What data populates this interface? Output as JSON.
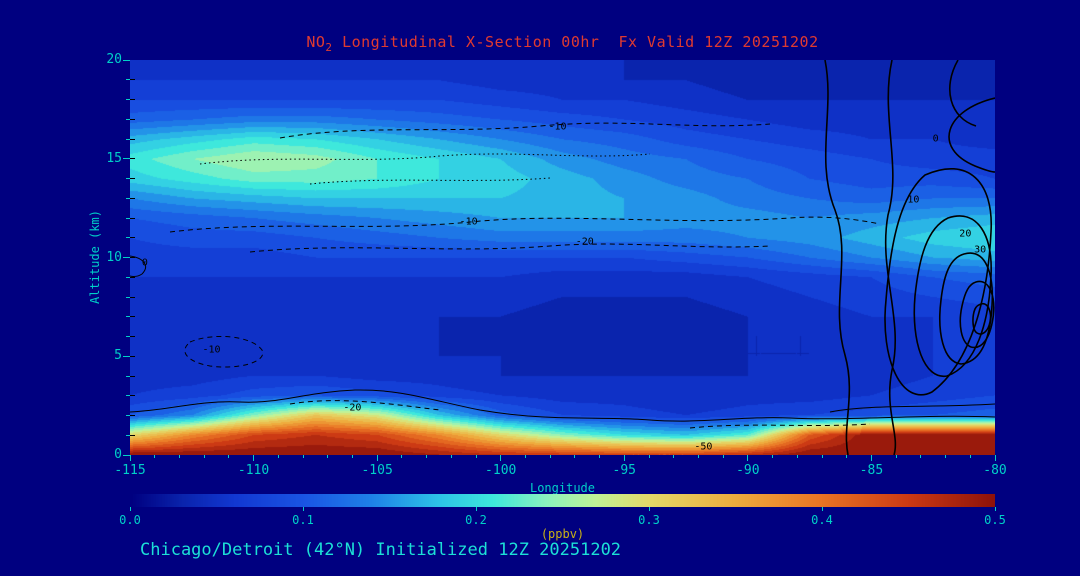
{
  "page": {
    "title": {
      "prefix": "NO",
      "sub": "2",
      "rest": " Longitudinal X-Section 00hr  Fx Valid 12Z 20251202"
    },
    "caption": "Chicago/Detroit (42°N) Initialized 12Z 20251202",
    "colors": {
      "background": "#000080",
      "title_text": "#e03a30",
      "axis_text": "#00d0c8",
      "caption_text": "#1ce0d6",
      "units_text": "#c9b115",
      "contour_lines": "#000000"
    }
  },
  "chart_data": {
    "type": "heatmap",
    "title": "NO2 Longitudinal X-Section 00hr  Fx Valid 12Z 20251202",
    "xlabel": "Longitude",
    "ylabel": "Altitude (km)",
    "x_range": [
      -115,
      -80
    ],
    "y_range": [
      0,
      20
    ],
    "x_ticks": [
      -115,
      -110,
      -105,
      -100,
      -95,
      -90,
      -85,
      -80
    ],
    "y_ticks": [
      0,
      5,
      10,
      15,
      20
    ],
    "x": [
      -115,
      -112.5,
      -110,
      -107.5,
      -105,
      -102.5,
      -100,
      -97.5,
      -95,
      -92.5,
      -90,
      -87.5,
      -85,
      -82.5,
      -80
    ],
    "y": [
      0,
      1,
      2,
      3,
      4,
      5,
      6,
      7,
      8,
      9,
      10,
      11,
      12,
      13,
      14,
      15,
      16,
      17,
      18,
      19,
      20
    ],
    "values_ppbv": [
      [
        0.5,
        0.5,
        0.5,
        0.5,
        0.5,
        0.48,
        0.46,
        0.45,
        0.44,
        0.44,
        0.46,
        0.5,
        0.5,
        0.5,
        0.5
      ],
      [
        0.3,
        0.38,
        0.44,
        0.46,
        0.44,
        0.38,
        0.3,
        0.24,
        0.2,
        0.18,
        0.22,
        0.42,
        0.5,
        0.5,
        0.5
      ],
      [
        0.1,
        0.14,
        0.24,
        0.32,
        0.28,
        0.18,
        0.11,
        0.08,
        0.07,
        0.06,
        0.07,
        0.08,
        0.09,
        0.1,
        0.11
      ],
      [
        0.06,
        0.07,
        0.09,
        0.1,
        0.09,
        0.07,
        0.06,
        0.05,
        0.05,
        0.04,
        0.05,
        0.05,
        0.06,
        0.07,
        0.08
      ],
      [
        0.05,
        0.05,
        0.06,
        0.06,
        0.05,
        0.05,
        0.04,
        0.04,
        0.04,
        0.04,
        0.04,
        0.05,
        0.05,
        0.06,
        0.07
      ],
      [
        0.05,
        0.05,
        0.05,
        0.05,
        0.05,
        0.04,
        0.04,
        0.03,
        0.03,
        0.03,
        0.04,
        0.04,
        0.05,
        0.06,
        0.06
      ],
      [
        0.05,
        0.05,
        0.05,
        0.05,
        0.04,
        0.04,
        0.03,
        0.03,
        0.03,
        0.03,
        0.04,
        0.04,
        0.05,
        0.06,
        0.06
      ],
      [
        0.05,
        0.05,
        0.05,
        0.05,
        0.04,
        0.04,
        0.04,
        0.03,
        0.03,
        0.03,
        0.04,
        0.05,
        0.06,
        0.06,
        0.07
      ],
      [
        0.05,
        0.05,
        0.05,
        0.05,
        0.05,
        0.05,
        0.05,
        0.04,
        0.04,
        0.04,
        0.05,
        0.06,
        0.07,
        0.08,
        0.09
      ],
      [
        0.06,
        0.06,
        0.06,
        0.06,
        0.06,
        0.06,
        0.06,
        0.05,
        0.05,
        0.05,
        0.06,
        0.07,
        0.08,
        0.1,
        0.11
      ],
      [
        0.07,
        0.07,
        0.07,
        0.08,
        0.08,
        0.08,
        0.08,
        0.08,
        0.08,
        0.09,
        0.1,
        0.12,
        0.14,
        0.16,
        0.17
      ],
      [
        0.08,
        0.09,
        0.09,
        0.1,
        0.11,
        0.12,
        0.13,
        0.13,
        0.13,
        0.13,
        0.14,
        0.15,
        0.17,
        0.19,
        0.2
      ],
      [
        0.1,
        0.11,
        0.12,
        0.13,
        0.14,
        0.15,
        0.16,
        0.16,
        0.16,
        0.15,
        0.15,
        0.14,
        0.15,
        0.16,
        0.17
      ],
      [
        0.14,
        0.16,
        0.17,
        0.18,
        0.18,
        0.18,
        0.18,
        0.17,
        0.16,
        0.15,
        0.13,
        0.12,
        0.11,
        0.12,
        0.12
      ],
      [
        0.19,
        0.21,
        0.23,
        0.23,
        0.22,
        0.2,
        0.19,
        0.17,
        0.15,
        0.13,
        0.12,
        0.1,
        0.09,
        0.09,
        0.08
      ],
      [
        0.21,
        0.24,
        0.26,
        0.25,
        0.22,
        0.2,
        0.18,
        0.15,
        0.13,
        0.12,
        0.1,
        0.09,
        0.08,
        0.07,
        0.07
      ],
      [
        0.17,
        0.19,
        0.21,
        0.2,
        0.18,
        0.16,
        0.14,
        0.12,
        0.11,
        0.09,
        0.08,
        0.07,
        0.06,
        0.06,
        0.05
      ],
      [
        0.11,
        0.12,
        0.13,
        0.13,
        0.12,
        0.11,
        0.1,
        0.09,
        0.08,
        0.07,
        0.06,
        0.05,
        0.05,
        0.04,
        0.04
      ],
      [
        0.08,
        0.08,
        0.08,
        0.08,
        0.08,
        0.08,
        0.07,
        0.06,
        0.06,
        0.05,
        0.04,
        0.04,
        0.04,
        0.04,
        0.04
      ],
      [
        0.06,
        0.06,
        0.06,
        0.06,
        0.06,
        0.06,
        0.05,
        0.05,
        0.04,
        0.04,
        0.03,
        0.03,
        0.03,
        0.03,
        0.03
      ],
      [
        0.05,
        0.05,
        0.05,
        0.05,
        0.05,
        0.05,
        0.04,
        0.04,
        0.04,
        0.03,
        0.03,
        0.03,
        0.03,
        0.03,
        0.03
      ]
    ],
    "fill_step": 0.02,
    "colormap": [
      [
        0.0,
        "#000080"
      ],
      [
        0.03,
        "#0a24ad"
      ],
      [
        0.06,
        "#1238d2"
      ],
      [
        0.1,
        "#1a55e4"
      ],
      [
        0.14,
        "#1f82e8"
      ],
      [
        0.18,
        "#2ec6e6"
      ],
      [
        0.21,
        "#3ee8dc"
      ],
      [
        0.24,
        "#8af2c0"
      ],
      [
        0.27,
        "#c2f296"
      ],
      [
        0.3,
        "#e4da6a"
      ],
      [
        0.35,
        "#eeac3e"
      ],
      [
        0.4,
        "#ea7424"
      ],
      [
        0.45,
        "#cc3a14"
      ],
      [
        0.5,
        "#8e120a"
      ]
    ],
    "colorbar": {
      "label": "(ppbv)",
      "min": 0.0,
      "max": 0.5,
      "ticks": [
        0.0,
        0.1,
        0.2,
        0.3,
        0.4,
        0.5
      ]
    },
    "contour_labels": [
      {
        "label": "-10",
        "lon": -97.7,
        "alt": 16.6
      },
      {
        "label": "-10",
        "lon": -101.3,
        "alt": 11.8
      },
      {
        "label": "-20",
        "lon": -96.6,
        "alt": 10.8
      },
      {
        "label": "0",
        "lon": -114.4,
        "alt": 9.7
      },
      {
        "label": "-10",
        "lon": -111.7,
        "alt": 5.3
      },
      {
        "label": "-20",
        "lon": -106.0,
        "alt": 2.4
      },
      {
        "label": "-50",
        "lon": -91.8,
        "alt": 0.4
      },
      {
        "label": "0",
        "lon": -82.4,
        "alt": 16.0
      },
      {
        "label": "10",
        "lon": -83.3,
        "alt": 12.9
      },
      {
        "label": "20",
        "lon": -81.2,
        "alt": 11.2
      },
      {
        "label": "30",
        "lon": -80.6,
        "alt": 10.4
      }
    ]
  }
}
